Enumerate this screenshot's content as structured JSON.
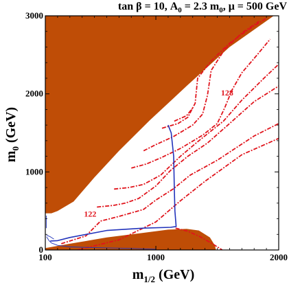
{
  "chart_data": {
    "type": "line",
    "title_parts": {
      "prefix": "tan β = 10, A",
      "sub": "0",
      "mid": " = 2.3 m",
      "sub2": "0",
      "suffix": ", μ = 500 GeV"
    },
    "xlabel_parts": {
      "main": "m",
      "sub": "1/2",
      "unit": " (GeV)"
    },
    "ylabel_parts": {
      "main": "m",
      "sub": "0",
      "unit": " (GeV)"
    },
    "xlim": [
      100,
      2000
    ],
    "ylim": [
      0,
      3000
    ],
    "x_ticks": [
      {
        "value": 100,
        "label": "100"
      },
      {
        "value": 1000,
        "label": "1000"
      },
      {
        "value": 2000,
        "label": "2000"
      }
    ],
    "y_ticks": [
      {
        "value": 0,
        "label": "0"
      },
      {
        "value": 1000,
        "label": "1000"
      },
      {
        "value": 2000,
        "label": "2000"
      },
      {
        "value": 3000,
        "label": "3000"
      }
    ],
    "colors": {
      "excluded_region": "#bf4d06",
      "higgs_contour": "#e0141c",
      "blue_contour": "#2233bb",
      "axes": "#000000"
    },
    "annotations": [
      {
        "text": "128",
        "x": 1580,
        "y": 1980
      },
      {
        "text": "122",
        "x": 465,
        "y": 425
      }
    ],
    "regions": [
      {
        "name": "upper-excluded-region",
        "points": [
          [
            100,
            3000
          ],
          [
            1960,
            3000
          ],
          [
            1600,
            2600
          ],
          [
            1250,
            2100
          ],
          [
            950,
            1660
          ],
          [
            700,
            1270
          ],
          [
            500,
            930
          ],
          [
            330,
            620
          ],
          [
            200,
            500
          ],
          [
            150,
            470
          ],
          [
            100,
            470
          ]
        ]
      },
      {
        "name": "lower-excluded-region",
        "points": [
          [
            100,
            0
          ],
          [
            100,
            25
          ],
          [
            300,
            80
          ],
          [
            600,
            160
          ],
          [
            900,
            220
          ],
          [
            1100,
            260
          ],
          [
            1250,
            270
          ],
          [
            1350,
            250
          ],
          [
            1440,
            160
          ],
          [
            1480,
            60
          ],
          [
            1490,
            0
          ]
        ]
      }
    ],
    "series": [
      {
        "points": [
          [
            360,
            0
          ],
          [
            700,
            130
          ],
          [
            1000,
            360
          ],
          [
            1200,
            630
          ],
          [
            1400,
            880
          ],
          [
            1700,
            1220
          ],
          [
            2000,
            1430
          ]
        ]
      },
      {
        "points": [
          [
            230,
            80
          ],
          [
            430,
            180
          ],
          [
            550,
            370
          ],
          [
            700,
            430
          ],
          [
            900,
            520
          ],
          [
            1000,
            640
          ],
          [
            1140,
            780
          ],
          [
            1280,
            960
          ],
          [
            1500,
            1150
          ],
          [
            1800,
            1460
          ],
          [
            2000,
            1620
          ]
        ]
      },
      {
        "points": [
          [
            520,
            550
          ],
          [
            650,
            570
          ],
          [
            750,
            600
          ],
          [
            860,
            660
          ],
          [
            1000,
            820
          ],
          [
            1120,
            1020
          ],
          [
            1260,
            1200
          ],
          [
            1420,
            1370
          ],
          [
            1600,
            1620
          ],
          [
            1800,
            1900
          ],
          [
            2000,
            2100
          ]
        ]
      },
      {
        "points": [
          [
            660,
            780
          ],
          [
            780,
            800
          ],
          [
            900,
            840
          ],
          [
            1040,
            960
          ],
          [
            1200,
            1200
          ],
          [
            1350,
            1400
          ],
          [
            1550,
            1650
          ],
          [
            1700,
            1920
          ],
          [
            1880,
            2200
          ],
          [
            2000,
            2380
          ]
        ]
      },
      {
        "points": [
          [
            800,
            1050
          ],
          [
            920,
            1100
          ],
          [
            1040,
            1180
          ],
          [
            1200,
            1300
          ],
          [
            1380,
            1470
          ],
          [
            1500,
            1620
          ],
          [
            1560,
            1820
          ],
          [
            1620,
            2050
          ],
          [
            1700,
            2270
          ],
          [
            1830,
            2510
          ],
          [
            1930,
            2700
          ]
        ]
      },
      {
        "points": [
          [
            900,
            1270
          ],
          [
            1000,
            1350
          ],
          [
            1140,
            1450
          ],
          [
            1300,
            1600
          ],
          [
            1380,
            1740
          ],
          [
            1420,
            1980
          ],
          [
            1450,
            2300
          ],
          [
            1560,
            2570
          ],
          [
            1700,
            2780
          ],
          [
            1840,
            2930
          ]
        ]
      },
      {
        "points": [
          [
            1050,
            1560
          ],
          [
            1180,
            1620
          ],
          [
            1260,
            1700
          ],
          [
            1320,
            1880
          ],
          [
            1340,
            2200
          ],
          [
            1450,
            2420
          ],
          [
            1600,
            2650
          ],
          [
            1760,
            2830
          ],
          [
            1900,
            2970
          ]
        ]
      },
      {
        "points": [
          [
            1150,
            1650
          ],
          [
            1250,
            1720
          ],
          [
            1300,
            1820
          ]
        ]
      },
      {
        "points": [
          [
            1160,
            280
          ],
          [
            1260,
            240
          ],
          [
            1360,
            170
          ],
          [
            1460,
            80
          ],
          [
            1520,
            20
          ],
          [
            1540,
            0
          ]
        ]
      }
    ],
    "blue_curves": [
      {
        "points": [
          [
            1100,
            1600
          ],
          [
            1125,
            1500
          ],
          [
            1145,
            1200
          ],
          [
            1150,
            800
          ],
          [
            1155,
            500
          ],
          [
            1165,
            300
          ],
          [
            1120,
            290
          ],
          [
            900,
            280
          ],
          [
            600,
            250
          ],
          [
            300,
            160
          ],
          [
            200,
            120
          ],
          [
            140,
            115
          ]
        ]
      },
      {
        "points": [
          [
            110,
            170
          ],
          [
            130,
            120
          ],
          [
            150,
            90
          ],
          [
            200,
            60
          ],
          [
            300,
            40
          ],
          [
            500,
            30
          ],
          [
            800,
            20
          ],
          [
            1000,
            10
          ]
        ]
      },
      {
        "points": [
          [
            108,
            440
          ],
          [
            108,
            280
          ]
        ]
      },
      {
        "points": [
          [
            110,
            190
          ],
          [
            140,
            170
          ],
          [
            170,
            140
          ]
        ]
      }
    ]
  }
}
